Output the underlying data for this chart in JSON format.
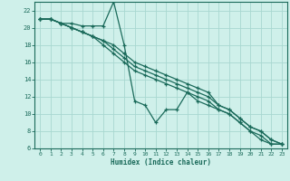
{
  "xlabel": "Humidex (Indice chaleur)",
  "bg_color": "#cff0ea",
  "grid_color": "#a8d8d0",
  "line_color": "#1a6a5a",
  "xlim": [
    -0.5,
    23.5
  ],
  "ylim": [
    6,
    23
  ],
  "xticks": [
    0,
    1,
    2,
    3,
    4,
    5,
    6,
    7,
    8,
    9,
    10,
    11,
    12,
    13,
    14,
    15,
    16,
    17,
    18,
    19,
    20,
    21,
    22,
    23
  ],
  "yticks": [
    6,
    8,
    10,
    12,
    14,
    16,
    18,
    20,
    22
  ],
  "line1_x": [
    0,
    1,
    2,
    3,
    4,
    5,
    6,
    7,
    8,
    9,
    10,
    11,
    12,
    13,
    14,
    15,
    16,
    17,
    18,
    19,
    20,
    21,
    22,
    23
  ],
  "line1_y": [
    21,
    21,
    20.5,
    20.5,
    20.2,
    20.2,
    20.2,
    23,
    18,
    11.5,
    11,
    9,
    10.5,
    10.5,
    12.5,
    11.5,
    11,
    10.5,
    10,
    9,
    8,
    7,
    6.5,
    6.5
  ],
  "line2_x": [
    0,
    1,
    2,
    3,
    4,
    5,
    6,
    7,
    8,
    9,
    10,
    11,
    12,
    13,
    14,
    15,
    16,
    17,
    18,
    19,
    20,
    21,
    22,
    23
  ],
  "line2_y": [
    21,
    21,
    20.5,
    20,
    19.5,
    19,
    18.5,
    18,
    17,
    16,
    15.5,
    15,
    14.5,
    14,
    13.5,
    13,
    12.5,
    11,
    10.5,
    9.5,
    8.5,
    8,
    7,
    6.5
  ],
  "line3_x": [
    0,
    1,
    2,
    3,
    4,
    5,
    6,
    7,
    8,
    9,
    10,
    11,
    12,
    13,
    14,
    15,
    16,
    17,
    18,
    19,
    20,
    21,
    22,
    23
  ],
  "line3_y": [
    21,
    21,
    20.5,
    20,
    19.5,
    19,
    18.5,
    17.5,
    16.5,
    15.5,
    15,
    14.5,
    14,
    13.5,
    13,
    12.5,
    12,
    11,
    10.5,
    9.5,
    8.5,
    8,
    7,
    6.5
  ],
  "line4_x": [
    0,
    1,
    2,
    3,
    4,
    5,
    6,
    7,
    8,
    9,
    10,
    11,
    12,
    13,
    14,
    15,
    16,
    17,
    18,
    19,
    20,
    21,
    22,
    23
  ],
  "line4_y": [
    21,
    21,
    20.5,
    20,
    19.5,
    19,
    18,
    17,
    16,
    15,
    14.5,
    14,
    13.5,
    13,
    12.5,
    12,
    11.5,
    10.5,
    10,
    9,
    8,
    7.5,
    6.5,
    6.5
  ]
}
